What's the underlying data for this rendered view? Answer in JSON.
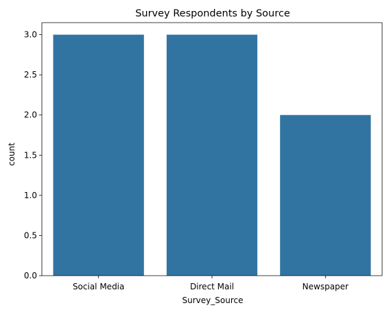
{
  "chart_data": {
    "type": "bar",
    "title": "Survey Respondents by Source",
    "xlabel": "Survey_Source",
    "ylabel": "count",
    "categories": [
      "Social Media",
      "Direct Mail",
      "Newspaper"
    ],
    "values": [
      3,
      3,
      2
    ],
    "ylim": [
      0,
      3.15
    ],
    "yticks": [
      "0.0",
      "0.5",
      "1.0",
      "1.5",
      "2.0",
      "2.5",
      "3.0"
    ],
    "grid": false,
    "legend": "none",
    "bar_color": "#3274a1"
  }
}
